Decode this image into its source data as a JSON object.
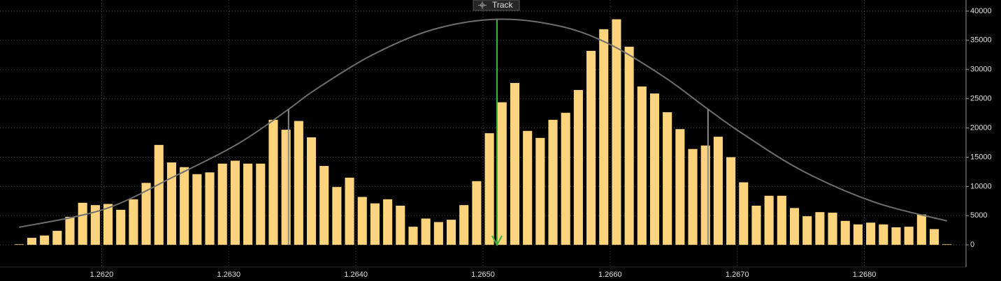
{
  "chart_data": {
    "type": "bar",
    "button": "Track",
    "x": [
      1.26135,
      1.26145,
      1.26155,
      1.26165,
      1.26175,
      1.26185,
      1.26195,
      1.26205,
      1.26215,
      1.26225,
      1.26235,
      1.26245,
      1.26255,
      1.26265,
      1.26275,
      1.26285,
      1.26295,
      1.26305,
      1.26315,
      1.26325,
      1.26335,
      1.26345,
      1.26355,
      1.26365,
      1.26375,
      1.26385,
      1.26395,
      1.26405,
      1.26415,
      1.26425,
      1.26435,
      1.26445,
      1.26455,
      1.26465,
      1.26475,
      1.26485,
      1.26495,
      1.26505,
      1.26515,
      1.26525,
      1.26535,
      1.26545,
      1.26555,
      1.26565,
      1.26575,
      1.26585,
      1.26595,
      1.26605,
      1.26615,
      1.26625,
      1.26635,
      1.26645,
      1.26655,
      1.26665,
      1.26675,
      1.26685,
      1.26695,
      1.26705,
      1.26715,
      1.26725,
      1.26735,
      1.26745,
      1.26755,
      1.26765,
      1.26775,
      1.26785,
      1.26795,
      1.26805,
      1.26815,
      1.26825,
      1.26835,
      1.26845,
      1.26855,
      1.26865
    ],
    "values": [
      100,
      1200,
      1600,
      2400,
      4800,
      7200,
      6800,
      7000,
      6000,
      7800,
      10600,
      17100,
      14100,
      13300,
      12100,
      12400,
      13900,
      14400,
      13900,
      13900,
      21400,
      19700,
      21200,
      18400,
      13500,
      9900,
      11500,
      8200,
      7100,
      7800,
      6700,
      3100,
      4500,
      3900,
      4300,
      6800,
      10900,
      19100,
      24400,
      27700,
      19500,
      18300,
      21400,
      22600,
      26500,
      33200,
      36900,
      38600,
      33900,
      27100,
      25900,
      22700,
      19800,
      16400,
      17000,
      18500,
      15000,
      10700,
      6700,
      8400,
      8400,
      6300,
      4900,
      5600,
      5500,
      4100,
      3500,
      3800,
      3500,
      3000,
      3100,
      5200,
      2700,
      100
    ],
    "color": "#fdd47c",
    "curve": {
      "type": "line",
      "color": "#6e6e6e",
      "x": [
        1.26135,
        1.26202,
        1.26257,
        1.26308,
        1.26347,
        1.26367,
        1.26412,
        1.2646,
        1.26511,
        1.26559,
        1.26598,
        1.26642,
        1.26677,
        1.26703,
        1.26751,
        1.26808,
        1.26865
      ],
      "values": [
        3000,
        6100,
        11700,
        17400,
        23200,
        26400,
        32400,
        36800,
        38600,
        37500,
        34500,
        28800,
        23200,
        19200,
        12700,
        7300,
        4100
      ]
    },
    "range_lines": [
      1.26347,
      1.26677
    ],
    "range_color": "#8a8a8a",
    "mean_line": 1.26511,
    "mean_color": "#3cb043",
    "xlim": [
      1.2612,
      1.2688
    ],
    "xticks": [
      {
        "value": 1.262,
        "label": "1.2620"
      },
      {
        "value": 1.263,
        "label": "1.2630"
      },
      {
        "value": 1.264,
        "label": "1.2640"
      },
      {
        "value": 1.265,
        "label": "1.2650"
      },
      {
        "value": 1.266,
        "label": "1.2660"
      },
      {
        "value": 1.267,
        "label": "1.2670"
      },
      {
        "value": 1.268,
        "label": "1.2680"
      }
    ],
    "ylim": [
      -3800,
      41900
    ],
    "yticks": [
      0,
      5000,
      10000,
      15000,
      20000,
      25000,
      30000,
      35000,
      40000
    ],
    "grid": true
  }
}
